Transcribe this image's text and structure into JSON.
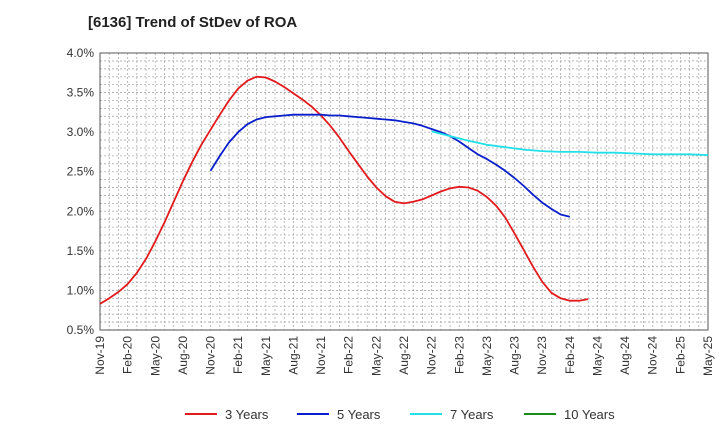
{
  "chart_data": {
    "type": "line",
    "title": "[6136]  Trend of StDev of ROA",
    "xlabel": "",
    "ylabel": "",
    "x_ticks": [
      "Nov-19",
      "Feb-20",
      "May-20",
      "Aug-20",
      "Nov-20",
      "Feb-21",
      "May-21",
      "Aug-21",
      "Nov-21",
      "Feb-22",
      "May-22",
      "Aug-22",
      "Nov-22",
      "Feb-23",
      "May-23",
      "Aug-23",
      "Nov-23",
      "Feb-24",
      "May-24",
      "Aug-24",
      "Nov-24",
      "Feb-25",
      "May-25"
    ],
    "y_ticks": [
      "0.5%",
      "1.0%",
      "1.5%",
      "2.0%",
      "2.5%",
      "3.0%",
      "3.5%",
      "4.0%"
    ],
    "ylim": [
      0.5,
      4.0
    ],
    "grid": true,
    "legend_position": "bottom",
    "series": [
      {
        "name": "3 Years",
        "color": "#e31a1c",
        "values": [
          0.83,
          0.9,
          0.98,
          1.08,
          1.22,
          1.4,
          1.62,
          1.86,
          2.12,
          2.38,
          2.62,
          2.84,
          3.03,
          3.22,
          3.4,
          3.55,
          3.65,
          3.7,
          3.69,
          3.64,
          3.57,
          3.49,
          3.41,
          3.32,
          3.21,
          3.08,
          2.93,
          2.76,
          2.6,
          2.44,
          2.3,
          2.19,
          2.12,
          2.1,
          2.12,
          2.15,
          2.2,
          2.25,
          2.29,
          2.31,
          2.3,
          2.26,
          2.18,
          2.07,
          1.92,
          1.72,
          1.51,
          1.3,
          1.11,
          0.97,
          0.9,
          0.87,
          0.87,
          0.89
        ]
      },
      {
        "name": "5 Years",
        "color": "#0a1fcc",
        "values": [
          null,
          null,
          null,
          null,
          null,
          null,
          null,
          null,
          null,
          null,
          null,
          null,
          2.51,
          2.7,
          2.87,
          3.0,
          3.1,
          3.16,
          3.19,
          3.2,
          3.21,
          3.22,
          3.22,
          3.22,
          3.22,
          3.21,
          3.21,
          3.2,
          3.19,
          3.18,
          3.17,
          3.16,
          3.15,
          3.13,
          3.11,
          3.08,
          3.04,
          3.0,
          2.95,
          2.88,
          2.8,
          2.72,
          2.66,
          2.59,
          2.51,
          2.42,
          2.32,
          2.21,
          2.11,
          2.03,
          1.96,
          1.93
        ]
      },
      {
        "name": "7 Years",
        "color": "#22e0e8",
        "values": [
          null,
          null,
          null,
          null,
          null,
          null,
          null,
          null,
          null,
          null,
          null,
          null,
          null,
          null,
          null,
          null,
          null,
          null,
          null,
          null,
          null,
          null,
          null,
          null,
          null,
          null,
          null,
          null,
          null,
          null,
          null,
          null,
          null,
          null,
          null,
          null,
          null,
          null,
          null,
          null,
          null,
          null,
          null,
          null,
          null,
          null,
          null,
          null,
          null,
          null,
          null,
          null,
          null,
          null,
          null,
          null,
          null,
          null,
          null,
          null,
          null,
          null,
          null,
          null,
          null,
          null,
          null,
          null,
          null,
          null,
          null,
          null,
          null,
          null,
          null,
          null,
          null,
          null,
          null,
          null,
          null,
          null,
          null,
          null,
          null,
          null
        ]
      },
      {
        "name": "10 Years",
        "color": "#1a8a1a",
        "values": []
      }
    ],
    "series_7y_points": [
      [
        36,
        3.01
      ],
      [
        38,
        2.95
      ],
      [
        40,
        2.89
      ],
      [
        42,
        2.84
      ],
      [
        44,
        2.81
      ],
      [
        46,
        2.78
      ],
      [
        48,
        2.76
      ],
      [
        50,
        2.75
      ],
      [
        52,
        2.75
      ],
      [
        54,
        2.74
      ],
      [
        56,
        2.74
      ],
      [
        58,
        2.73
      ],
      [
        60,
        2.72
      ],
      [
        62,
        2.72
      ],
      [
        64,
        2.72
      ],
      [
        66,
        2.71
      ]
    ]
  }
}
